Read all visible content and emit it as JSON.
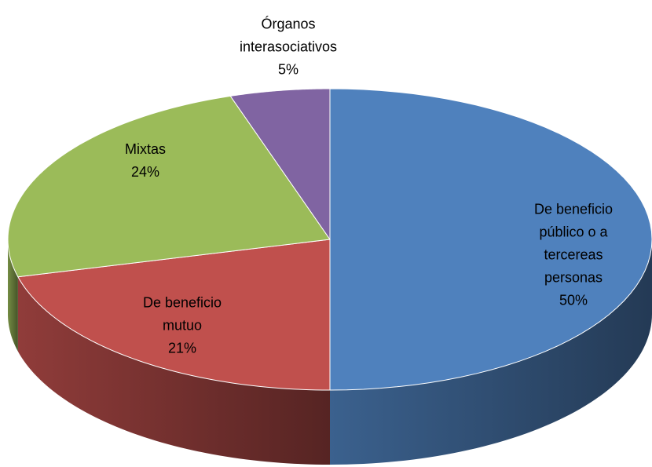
{
  "chart_data": {
    "type": "pie3d",
    "categories": [
      "De beneficio público o a tercereas personas",
      "De beneficio mutuo",
      "Mixtas",
      "Órganos interasociativos"
    ],
    "values": [
      50,
      21,
      24,
      5
    ],
    "value_labels": [
      "50%",
      "21%",
      "24%",
      "5%"
    ],
    "colors": [
      "#4f81bd",
      "#c0504d",
      "#9bbb59",
      "#8064a2"
    ]
  }
}
